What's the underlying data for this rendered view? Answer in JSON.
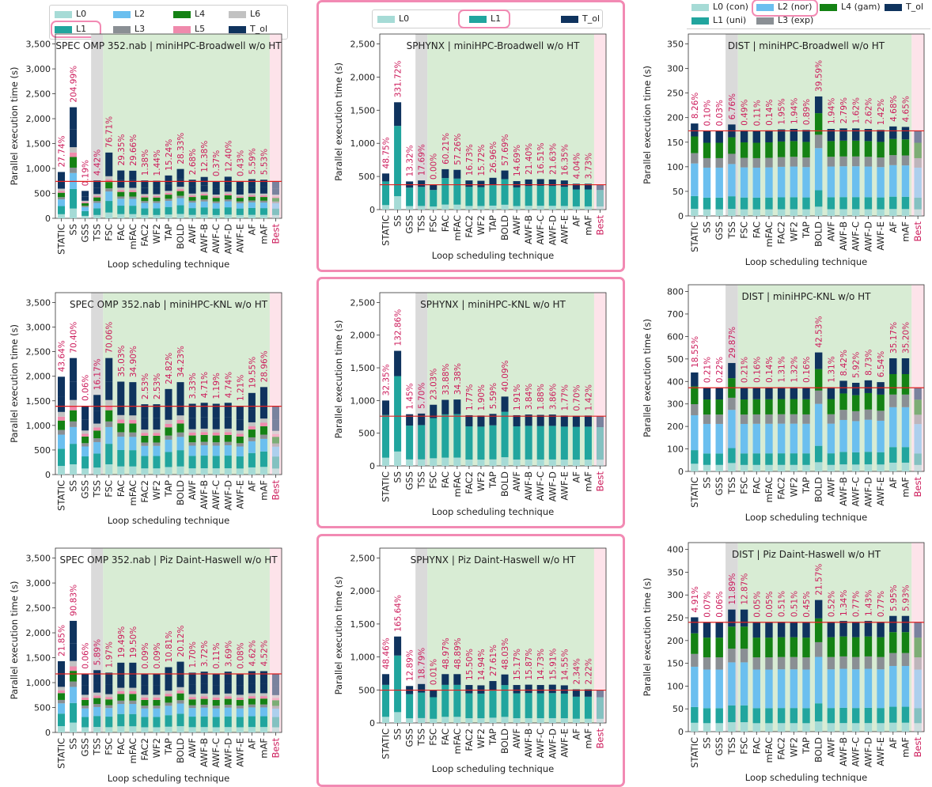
{
  "colors": {
    "L0": "#a6dbd6",
    "L1": "#21a59e",
    "L2": "#6bbfef",
    "L3": "#8a8f94",
    "L4": "#148214",
    "L5": "#ef8aac",
    "L6": "#c2c2c2",
    "T_ol": "#0f335e",
    "ref_line": "#e02020",
    "pct_text": "#cc1a5a",
    "best_label": "#cc1a5a",
    "green_band": "#d8ecd4",
    "gray_band": "#dadada",
    "pink_band": "#fde3ea",
    "highlight": "#f28ab3"
  },
  "legends": {
    "left": {
      "items": [
        {
          "label": "L0",
          "color": "#a6dbd6"
        },
        {
          "label": "L2",
          "color": "#6bbfef"
        },
        {
          "label": "L4",
          "color": "#148214"
        },
        {
          "label": "L6",
          "color": "#c2c2c2"
        },
        {
          "label": "L1",
          "color": "#21a59e"
        },
        {
          "label": "L3",
          "color": "#8a8f94"
        },
        {
          "label": "L5",
          "color": "#ef8aac"
        },
        {
          "label": "T_ol",
          "color": "#0f335e"
        }
      ]
    },
    "middle": {
      "items": [
        {
          "label": "L0",
          "color": "#a6dbd6"
        },
        {
          "label": "L1",
          "color": "#21a59e"
        },
        {
          "label": "T_ol",
          "color": "#0f335e"
        }
      ]
    },
    "right": {
      "items": [
        {
          "label": "L0 (con)",
          "color": "#a6dbd6"
        },
        {
          "label": "L2 (nor)",
          "color": "#6bbfef"
        },
        {
          "label": "L4 (gam)",
          "color": "#148214"
        },
        {
          "label": "T_ol",
          "color": "#0f335e"
        },
        {
          "label": "L1 (uni)",
          "color": "#21a59e"
        },
        {
          "label": "L3 (exp)",
          "color": "#8a8f94"
        }
      ]
    }
  },
  "chart_data": [
    {
      "type": "bar",
      "stacked": true,
      "title": "SPEC OMP 352.nab | miniHPC-Broadwell w/o HT",
      "xlabel": "Loop scheduling technique",
      "ylabel": "Parallel execution time (s)",
      "categories": [
        "STATIC",
        "SS",
        "GSS",
        "TSS",
        "FSC",
        "FAC",
        "mFAC",
        "FAC2",
        "WF2",
        "TAP",
        "BOLD",
        "AWF",
        "AWF-B",
        "AWF-C",
        "AWF-D",
        "AWF-E",
        "AF",
        "mAF",
        "Best"
      ],
      "totals": [
        930,
        2230,
        550,
        760,
        1320,
        960,
        955,
        760,
        755,
        860,
        990,
        775,
        830,
        745,
        835,
        745,
        785,
        775,
        740
      ],
      "percent_labels": [
        "27.74%",
        "204.99%",
        "0.19%",
        "4.42%",
        "76.71%",
        "29.35%",
        "29.66%",
        "1.38%",
        "1.44%",
        "15.24%",
        "28.33%",
        "2.68%",
        "12.38%",
        "0.37%",
        "12.40%",
        "0.43%",
        "5.59%",
        "5.53%",
        ""
      ],
      "ylim": [
        0,
        3700
      ],
      "yticks": [
        0,
        500,
        1000,
        1500,
        2000,
        2500,
        3000,
        3500
      ],
      "reference_line": 740,
      "grid": false
    },
    {
      "type": "bar",
      "stacked": true,
      "title": "SPHYNX | miniHPC-Broadwell w/o HT",
      "xlabel": "Loop scheduling technique",
      "ylabel": "Parallel execution time (s)",
      "categories": [
        "STATIC",
        "SS",
        "GSS",
        "TSS",
        "FSC",
        "FAC",
        "mFAC",
        "FAC2",
        "WF2",
        "TAP",
        "BOLD",
        "AWF",
        "AWF-B",
        "AWF-C",
        "AWF-D",
        "AWF-E",
        "AF",
        "mAF",
        "Best"
      ],
      "totals": [
        545,
        1620,
        425,
        440,
        380,
        610,
        600,
        440,
        435,
        480,
        590,
        430,
        455,
        460,
        455,
        440,
        390,
        390,
        380
      ],
      "percent_labels": [
        "48.75%",
        "331.72%",
        "13.32%",
        "17.69%",
        "0.00%",
        "60.21%",
        "57.26%",
        "16.73%",
        "15.72%",
        "26.96%",
        "57.69%",
        "14.69%",
        "21.40%",
        "16.51%",
        "21.63%",
        "16.35%",
        "4.04%",
        "3.73%",
        ""
      ],
      "ylim": [
        0,
        2650
      ],
      "yticks": [
        0,
        500,
        1000,
        1500,
        2000,
        2500
      ],
      "reference_line": 375,
      "grid": false
    },
    {
      "type": "bar",
      "stacked": true,
      "title": "DIST | miniHPC-Broadwell w/o HT",
      "xlabel": "Loop scheduling technique",
      "ylabel": "Parallel execution time (s)",
      "categories": [
        "STATIC",
        "SS",
        "GSS",
        "TSS",
        "FSC",
        "FAC",
        "mFAC",
        "FAC2",
        "WF2",
        "TAP",
        "BOLD",
        "AWF",
        "AWF-B",
        "AWF-C",
        "AWF-D",
        "AWF-E",
        "AF",
        "mAF",
        "Best"
      ],
      "totals": [
        188,
        173,
        173,
        186,
        174,
        173,
        174,
        176,
        177,
        175,
        243,
        177,
        178,
        178,
        177,
        175,
        182,
        181,
        173
      ],
      "percent_labels": [
        "8.26%",
        "0.10%",
        "0.03%",
        "6.76%",
        "0.49%",
        "0.11%",
        "0.14%",
        "1.95%",
        "1.94%",
        "0.89%",
        "39.59%",
        "1.94%",
        "2.79%",
        "1.62%",
        "2.62%",
        "1.42%",
        "4.68%",
        "4.65%",
        ""
      ],
      "ylim": [
        0,
        370
      ],
      "yticks": [
        0,
        50,
        100,
        150,
        200,
        250,
        300,
        350
      ],
      "reference_line": 173,
      "grid": false
    },
    {
      "type": "bar",
      "stacked": true,
      "title": "SPEC OMP 352.nab | miniHPC-KNL w/o HT",
      "xlabel": "Loop scheduling technique",
      "ylabel": "Parallel execution time (s)",
      "categories": [
        "STATIC",
        "SS",
        "GSS",
        "TSS",
        "FSC",
        "FAC",
        "mFAC",
        "FAC2",
        "WF2",
        "TAP",
        "BOLD",
        "AWF",
        "AWF-B",
        "AWF-C",
        "AWF-D",
        "AWF-E",
        "AF",
        "mAF",
        "Best"
      ],
      "totals": [
        1990,
        2370,
        1400,
        1620,
        2370,
        1890,
        1880,
        1430,
        1430,
        1740,
        1880,
        1440,
        1460,
        1440,
        1460,
        1400,
        1660,
        1780,
        1390
      ],
      "percent_labels": [
        "43.64%",
        "70.40%",
        "0.06%",
        "16.17%",
        "70.06%",
        "35.03%",
        "34.90%",
        "2.53%",
        "2.53%",
        "24.82%",
        "34.23%",
        "3.33%",
        "4.71%",
        "1.19%",
        "4.74%",
        "1.21%",
        "19.55%",
        "28.96%",
        ""
      ],
      "ylim": [
        0,
        3700
      ],
      "yticks": [
        0,
        500,
        1000,
        1500,
        2000,
        2500,
        3000,
        3500
      ],
      "reference_line": 1390,
      "grid": false
    },
    {
      "type": "bar",
      "stacked": true,
      "title": "SPHYNX | miniHPC-KNL w/o HT",
      "xlabel": "Loop scheduling technique",
      "ylabel": "Parallel execution time (s)",
      "categories": [
        "STATIC",
        "SS",
        "GSS",
        "TSS",
        "FSC",
        "FAC",
        "mFAC",
        "FAC2",
        "WF2",
        "TAP",
        "BOLD",
        "AWF",
        "AWF-B",
        "AWF-C",
        "AWF-D",
        "AWF-E",
        "AF",
        "mAF",
        "Best"
      ],
      "totals": [
        1000,
        1760,
        790,
        800,
        935,
        1010,
        1015,
        775,
        770,
        795,
        1060,
        775,
        785,
        780,
        785,
        770,
        765,
        770,
        760
      ],
      "percent_labels": [
        "32.35%",
        "132.86%",
        "1.45%",
        "5.70%",
        "23.03%",
        "33.88%",
        "34.38%",
        "1.77%",
        "1.90%",
        "5.59%",
        "40.09%",
        "1.91%",
        "3.84%",
        "1.88%",
        "3.86%",
        "1.77%",
        "0.70%",
        "1.42%",
        ""
      ],
      "ylim": [
        0,
        2650
      ],
      "yticks": [
        0,
        500,
        1000,
        1500,
        2000,
        2500
      ],
      "reference_line": 760,
      "grid": false
    },
    {
      "type": "bar",
      "stacked": true,
      "title": "DIST | miniHPC-KNL w/o HT",
      "xlabel": "Loop scheduling technique",
      "ylabel": "Parallel execution time (s)",
      "categories": [
        "STATIC",
        "SS",
        "GSS",
        "TSS",
        "FSC",
        "FAC",
        "mFAC",
        "FAC2",
        "WF2",
        "TAP",
        "BOLD",
        "AWF",
        "AWF-B",
        "AWF-C",
        "AWF-D",
        "AWF-E",
        "AF",
        "mAF",
        "Best"
      ],
      "totals": [
        440,
        372,
        372,
        482,
        372,
        373,
        373,
        374,
        374,
        373,
        529,
        374,
        403,
        394,
        405,
        397,
        503,
        503,
        371
      ],
      "percent_labels": [
        "18.55%",
        "0.21%",
        "0.22%",
        "29.87%",
        "0.21%",
        "0.16%",
        "0.14%",
        "1.31%",
        "1.32%",
        "0.16%",
        "42.53%",
        "1.31%",
        "8.42%",
        "5.92%",
        "8.73%",
        "6.54%",
        "35.17%",
        "35.20%",
        ""
      ],
      "ylim": [
        0,
        830
      ],
      "yticks": [
        0,
        100,
        200,
        300,
        400,
        500,
        600,
        700,
        800
      ],
      "reference_line": 372,
      "grid": false
    },
    {
      "type": "bar",
      "stacked": true,
      "title": "SPEC OMP 352.nab | Piz Daint-Haswell w/o HT",
      "xlabel": "Loop scheduling technique",
      "ylabel": "Parallel execution time (s)",
      "categories": [
        "STATIC",
        "SS",
        "GSS",
        "TSS",
        "FSC",
        "FAC",
        "mFAC",
        "FAC2",
        "WF2",
        "TAP",
        "BOLD",
        "AWF",
        "AWF-B",
        "AWF-C",
        "AWF-D",
        "AWF-E",
        "AF",
        "mAF",
        "Best"
      ],
      "totals": [
        1430,
        2240,
        1180,
        1250,
        1200,
        1400,
        1400,
        1180,
        1180,
        1310,
        1420,
        1200,
        1220,
        1180,
        1220,
        1180,
        1230,
        1230,
        1170
      ],
      "percent_labels": [
        "21.85%",
        "90.83%",
        "0.06%",
        "5.89%",
        "1.97%",
        "19.49%",
        "19.50%",
        "0.09%",
        "0.09%",
        "10.81%",
        "20.12%",
        "1.70%",
        "3.72%",
        "0.11%",
        "3.69%",
        "0.08%",
        "4.62%",
        "4.52%",
        ""
      ],
      "ylim": [
        0,
        3700
      ],
      "yticks": [
        0,
        500,
        1000,
        1500,
        2000,
        2500,
        3000,
        3500
      ],
      "reference_line": 1175,
      "grid": false
    },
    {
      "type": "bar",
      "stacked": true,
      "title": "SPHYNX | Piz Daint-Haswell w/o HT",
      "xlabel": "Loop scheduling technique",
      "ylabel": "Parallel execution time (s)",
      "categories": [
        "STATIC",
        "SS",
        "GSS",
        "TSS",
        "FSC",
        "FAC",
        "mFAC",
        "FAC2",
        "WF2",
        "TAP",
        "BOLD",
        "AWF",
        "AWF-B",
        "AWF-C",
        "AWF-D",
        "AWF-E",
        "AF",
        "mAF",
        "Best"
      ],
      "totals": [
        740,
        1310,
        560,
        590,
        500,
        740,
        740,
        575,
        570,
        635,
        735,
        575,
        580,
        575,
        580,
        570,
        510,
        510,
        500
      ],
      "percent_labels": [
        "48.46%",
        "165.64%",
        "12.89%",
        "18.79%",
        "0.01%",
        "48.97%",
        "48.89%",
        "15.50%",
        "14.94%",
        "27.61%",
        "48.03%",
        "15.17%",
        "15.87%",
        "14.73%",
        "15.91%",
        "14.55%",
        "2.34%",
        "2.22%",
        ""
      ],
      "ylim": [
        0,
        2650
      ],
      "yticks": [
        0,
        500,
        1000,
        1500,
        2000,
        2500
      ],
      "reference_line": 497,
      "grid": false
    },
    {
      "type": "bar",
      "stacked": true,
      "title": "DIST | Piz Daint-Haswell w/o HT",
      "xlabel": "Loop scheduling technique",
      "ylabel": "Parallel execution time (s)",
      "categories": [
        "STATIC",
        "SS",
        "GSS",
        "TSS",
        "FSC",
        "FAC",
        "mFAC",
        "FAC2",
        "WF2",
        "TAP",
        "BOLD",
        "AWF",
        "AWF-B",
        "AWF-C",
        "AWF-D",
        "AWF-E",
        "AF",
        "mAF",
        "Best"
      ],
      "totals": [
        251,
        240,
        240,
        268,
        268,
        240,
        240,
        241,
        241,
        240,
        289,
        241,
        243,
        241,
        243,
        241,
        254,
        254,
        240
      ],
      "percent_labels": [
        "4.91%",
        "0.07%",
        "0.06%",
        "11.89%",
        "12.87%",
        "0.05%",
        "0.05%",
        "0.51%",
        "0.51%",
        "0.45%",
        "21.57%",
        "0.52%",
        "1.34%",
        "0.77%",
        "1.43%",
        "0.77%",
        "5.95%",
        "5.93%",
        ""
      ],
      "ylim": [
        0,
        415
      ],
      "yticks": [
        0,
        50,
        100,
        150,
        200,
        250,
        300,
        350,
        400
      ],
      "reference_line": 240,
      "grid": false
    }
  ]
}
